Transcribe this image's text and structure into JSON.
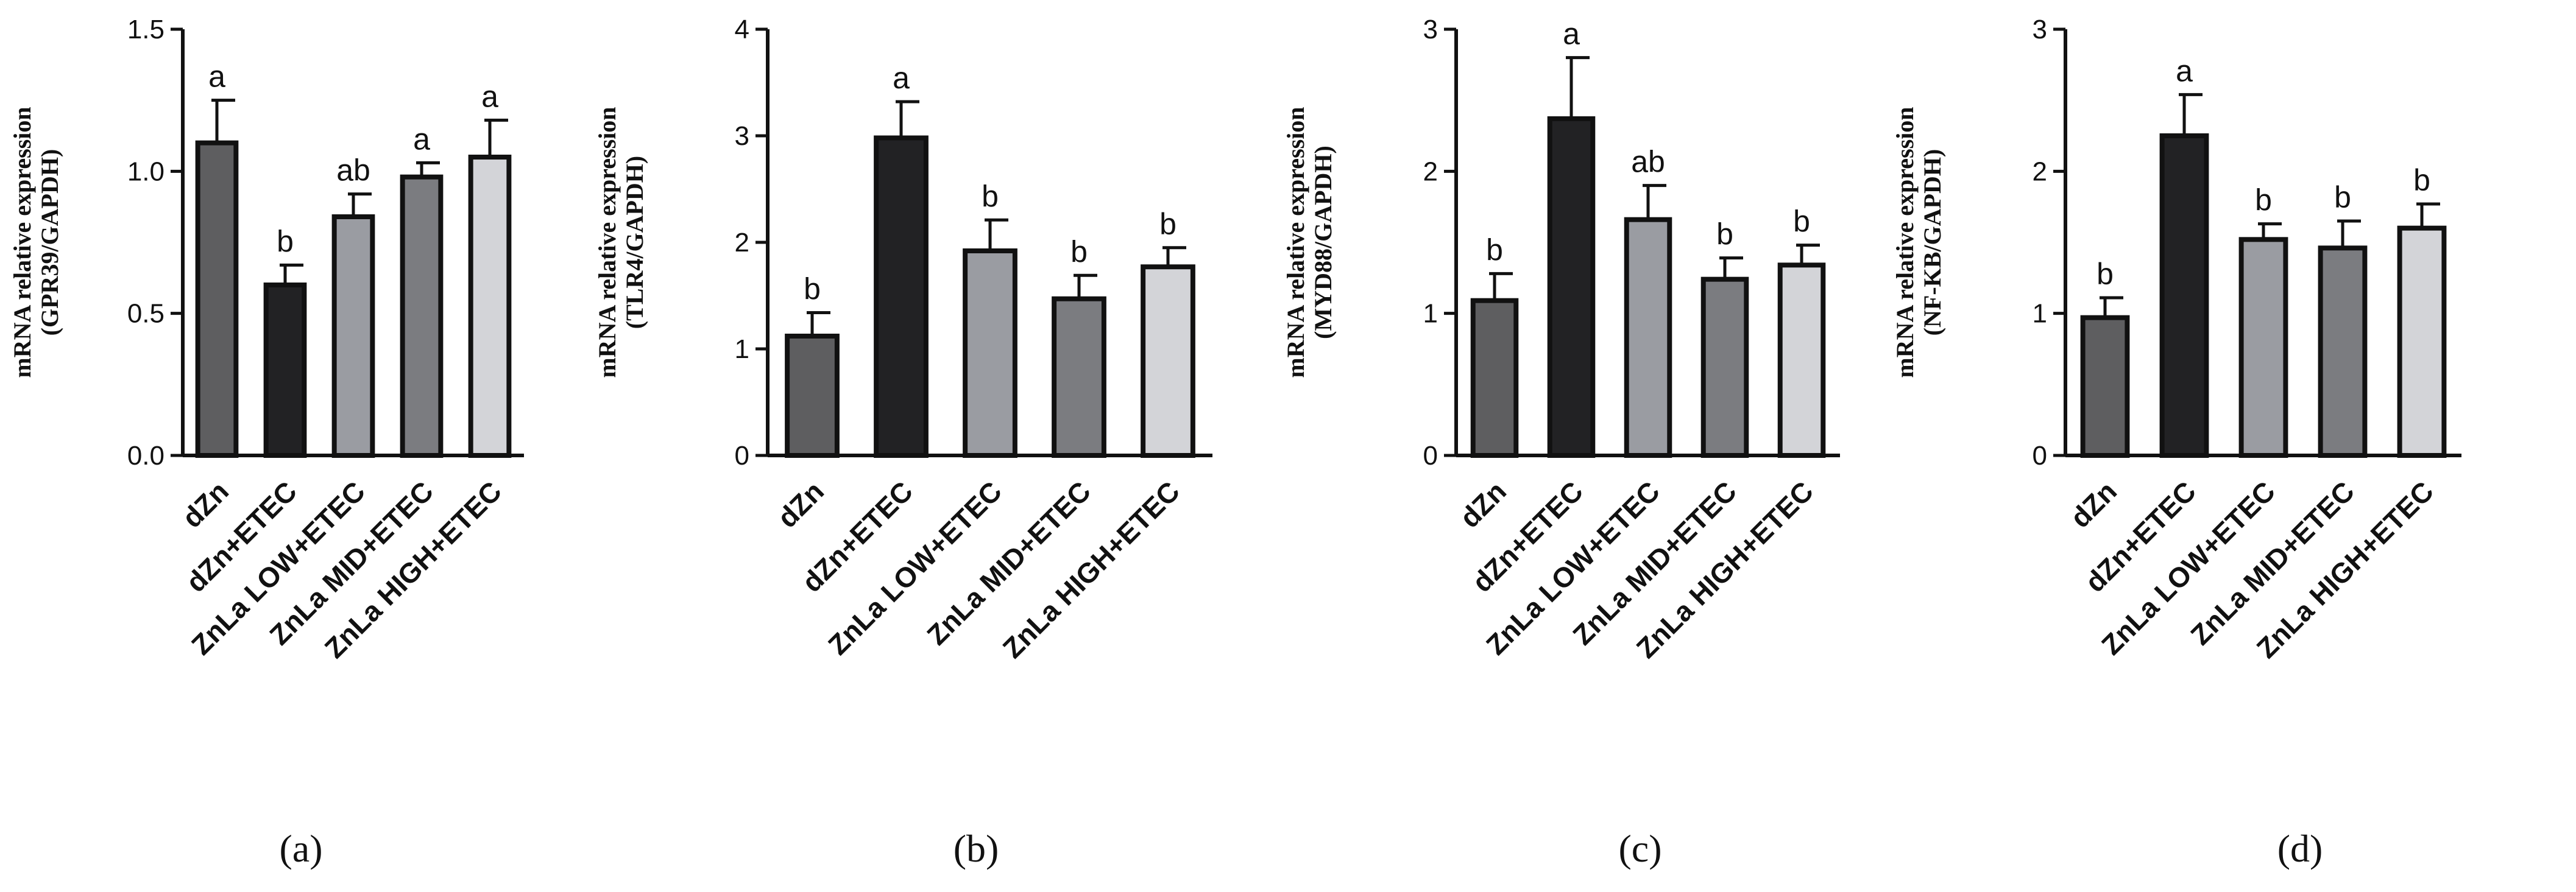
{
  "categories": [
    "dZn",
    "dZn+ETEC",
    "ZnLa LOW+ETEC",
    "ZnLa MID+ETEC",
    "ZnLa HIGH+ETEC"
  ],
  "bar_colors": [
    "#5e5e60",
    "#222224",
    "#9a9ca2",
    "#7b7c80",
    "#d3d4d8"
  ],
  "chart_data": [
    {
      "type": "bar",
      "panel": "(a)",
      "ylabel_line1": "mRNA relative expression",
      "ylabel_line2": "(GPR39/GAPDH)",
      "ylim": [
        0,
        1.5
      ],
      "yticks": [
        0.0,
        0.5,
        1.0,
        1.5
      ],
      "ytick_labels": [
        "0.0",
        "0.5",
        "1.0",
        "1.5"
      ],
      "values": [
        1.1,
        0.6,
        0.84,
        0.98,
        1.05
      ],
      "errors": [
        0.15,
        0.07,
        0.08,
        0.05,
        0.13
      ],
      "significance": [
        "a",
        "b",
        "ab",
        "a",
        "a"
      ]
    },
    {
      "type": "bar",
      "panel": "(b)",
      "ylabel_line1": "mRNA relative expression",
      "ylabel_line2": "(TLR4/GAPDH)",
      "ylim": [
        0,
        4
      ],
      "yticks": [
        0,
        1,
        2,
        3,
        4
      ],
      "ytick_labels": [
        "0",
        "1",
        "2",
        "3",
        "4"
      ],
      "values": [
        1.12,
        2.98,
        1.92,
        1.47,
        1.77
      ],
      "errors": [
        0.22,
        0.34,
        0.29,
        0.22,
        0.18
      ],
      "significance": [
        "b",
        "a",
        "b",
        "b",
        "b"
      ]
    },
    {
      "type": "bar",
      "panel": "(c)",
      "ylabel_line1": "mRNA relative expression",
      "ylabel_line2": "(MYD88/GAPDH)",
      "ylim": [
        0,
        3
      ],
      "yticks": [
        0,
        1,
        2,
        3
      ],
      "ytick_labels": [
        "0",
        "1",
        "2",
        "3"
      ],
      "values": [
        1.09,
        2.37,
        1.66,
        1.24,
        1.34
      ],
      "errors": [
        0.19,
        0.43,
        0.24,
        0.15,
        0.14
      ],
      "significance": [
        "b",
        "a",
        "ab",
        "b",
        "b"
      ]
    },
    {
      "type": "bar",
      "panel": "(d)",
      "ylabel_line1": "mRNA relative expression",
      "ylabel_line2": "(NF-KB/GAPDH)",
      "ylim": [
        0,
        3
      ],
      "yticks": [
        0,
        1,
        2,
        3
      ],
      "ytick_labels": [
        "0",
        "1",
        "2",
        "3"
      ],
      "values": [
        0.97,
        2.25,
        1.52,
        1.46,
        1.6
      ],
      "errors": [
        0.14,
        0.29,
        0.11,
        0.19,
        0.17
      ],
      "significance": [
        "b",
        "a",
        "b",
        "b",
        "b"
      ]
    }
  ]
}
